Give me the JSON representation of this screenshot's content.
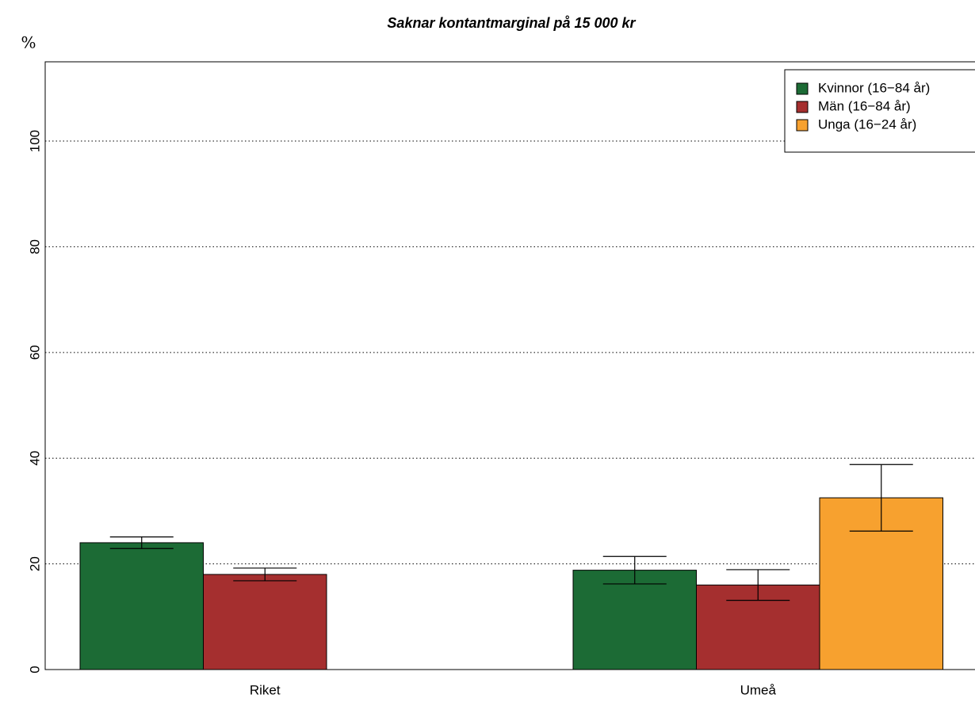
{
  "chart_data": {
    "type": "bar",
    "title": "Saknar kontantmarginal på 15 000 kr",
    "ylabel": "%",
    "categories": [
      "Riket",
      "Umeå"
    ],
    "series": [
      {
        "name": "Kvinnor (16−84 år)",
        "color": "#1c6b35",
        "values": [
          24,
          18.8
        ],
        "errors": [
          1.1,
          2.6
        ]
      },
      {
        "name": "Män (16−84 år)",
        "color": "#a52f2f",
        "values": [
          18,
          16
        ],
        "errors": [
          1.2,
          2.9
        ]
      },
      {
        "name": "Unga (16−24 år)",
        "color": "#f7a12f",
        "values": [
          null,
          32.5
        ],
        "errors": [
          null,
          6.3
        ]
      }
    ],
    "ylim": [
      0,
      115
    ],
    "yticks": [
      0,
      20,
      40,
      60,
      80,
      100
    ],
    "grid": true,
    "legend": "top-right"
  }
}
